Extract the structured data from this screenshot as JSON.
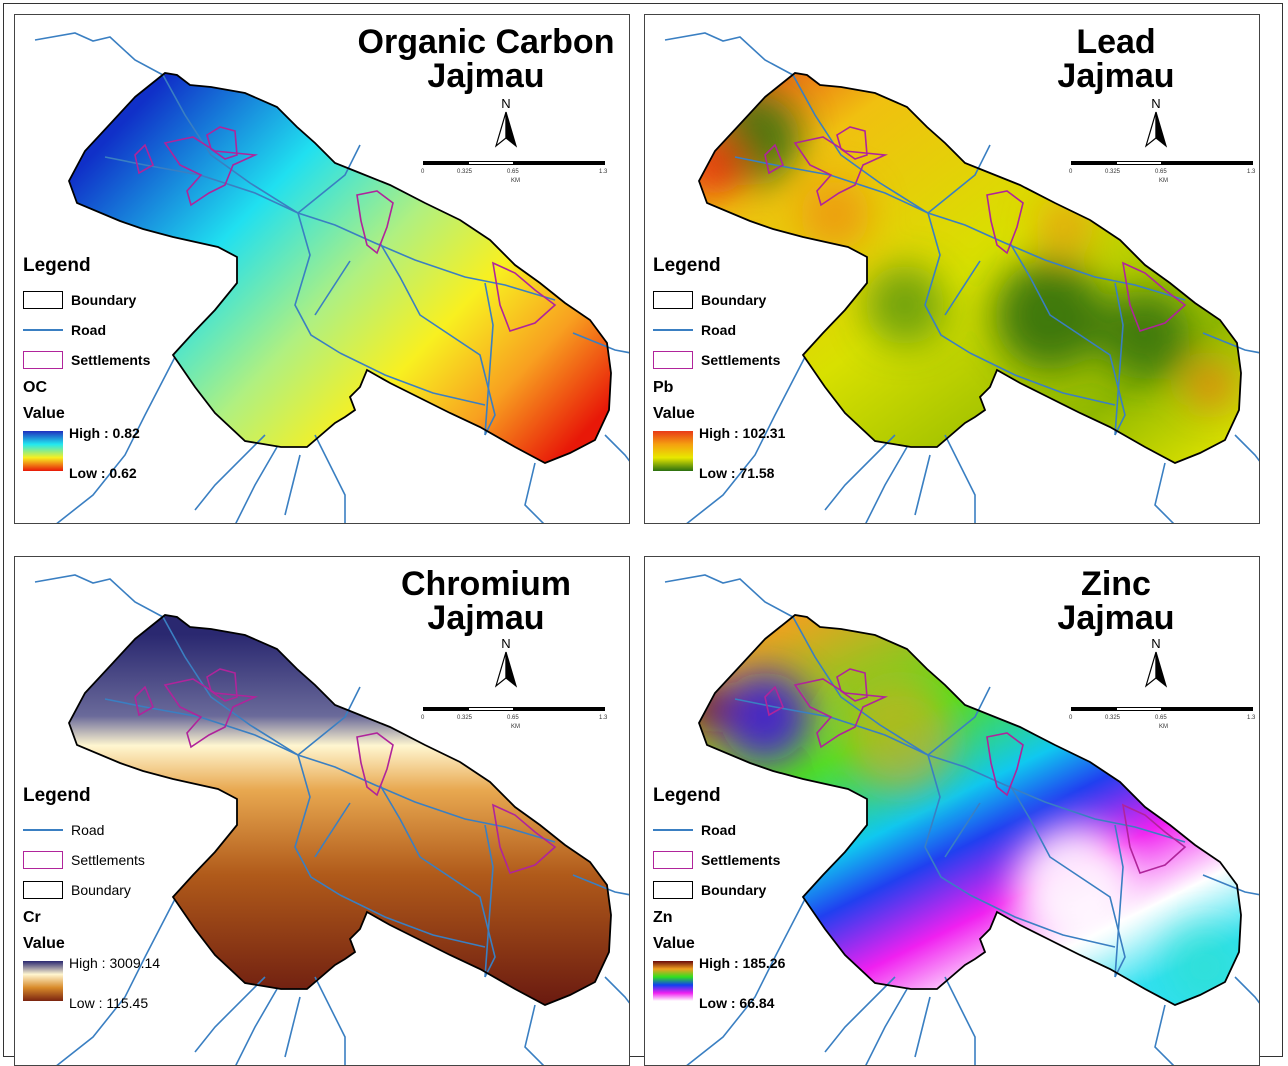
{
  "panels": [
    {
      "title": [
        "Organic Carbon",
        "Jajmau"
      ],
      "legend": {
        "heading": "Legend",
        "items": [
          {
            "type": "boundary",
            "label": "Boundary"
          },
          {
            "type": "road",
            "label": "Road"
          },
          {
            "type": "settlement",
            "label": "Settlements"
          }
        ],
        "variable": "OC",
        "value_heading": "Value",
        "high_label": "High : 0.82",
        "low_label": "Low : 0.62"
      },
      "ramp_colors": [
        "#1f2fbf",
        "#22e8f0",
        "#f8f020",
        "#e81808"
      ],
      "north": "N",
      "scale": {
        "ticks": [
          "0",
          "0.325",
          "0.65",
          "1.3"
        ],
        "unit": "KM"
      }
    },
    {
      "title": [
        "Lead",
        "Jajmau"
      ],
      "legend": {
        "heading": "Legend",
        "items": [
          {
            "type": "boundary",
            "label": "Boundary"
          },
          {
            "type": "road",
            "label": "Road"
          },
          {
            "type": "settlement",
            "label": "Settlements"
          }
        ],
        "variable": "Pb",
        "value_heading": "Value",
        "high_label": "High : 102.31",
        "low_label": "Low : 71.58"
      },
      "ramp_colors": [
        "#e83a18",
        "#f5a010",
        "#e8e800",
        "#2a7010"
      ],
      "north": "N",
      "scale": {
        "ticks": [
          "0",
          "0.325",
          "0.65",
          "1.3"
        ],
        "unit": "KM"
      }
    },
    {
      "title": [
        "Chromium",
        "Jajmau"
      ],
      "legend": {
        "heading": "Legend",
        "items": [
          {
            "type": "road",
            "label": "Road"
          },
          {
            "type": "settlement",
            "label": "Settlements"
          },
          {
            "type": "boundary",
            "label": "Boundary"
          }
        ],
        "variable": "Cr",
        "value_heading": "Value",
        "high_label": "High : 3009.14",
        "low_label": "Low : 115.45"
      },
      "ramp_colors": [
        "#2a2870",
        "#fff6d0",
        "#d88a2a",
        "#7a2410"
      ],
      "north": "N",
      "scale": {
        "ticks": [
          "0",
          "0.325",
          "0.65",
          "1.3"
        ],
        "unit": "KM"
      }
    },
    {
      "title": [
        "Zinc",
        "Jajmau"
      ],
      "legend": {
        "heading": "Legend",
        "items": [
          {
            "type": "road",
            "label": "Road"
          },
          {
            "type": "settlement",
            "label": "Settlements"
          },
          {
            "type": "boundary",
            "label": "Boundary"
          }
        ],
        "variable": "Zn",
        "value_heading": "Value",
        "high_label": "High : 185.26",
        "low_label": "Low : 66.84"
      },
      "ramp_colors": [
        "#6a0a0a",
        "#f0a020",
        "#30e020",
        "#1040f0",
        "#f020f0",
        "#ffffff"
      ],
      "north": "N",
      "scale": {
        "ticks": [
          "0",
          "0.325",
          "0.65",
          "1.3"
        ],
        "unit": "KM"
      }
    }
  ],
  "colors": {
    "road": "#3a7fc2",
    "settlement": "#b0249b",
    "boundary": "#000000"
  }
}
